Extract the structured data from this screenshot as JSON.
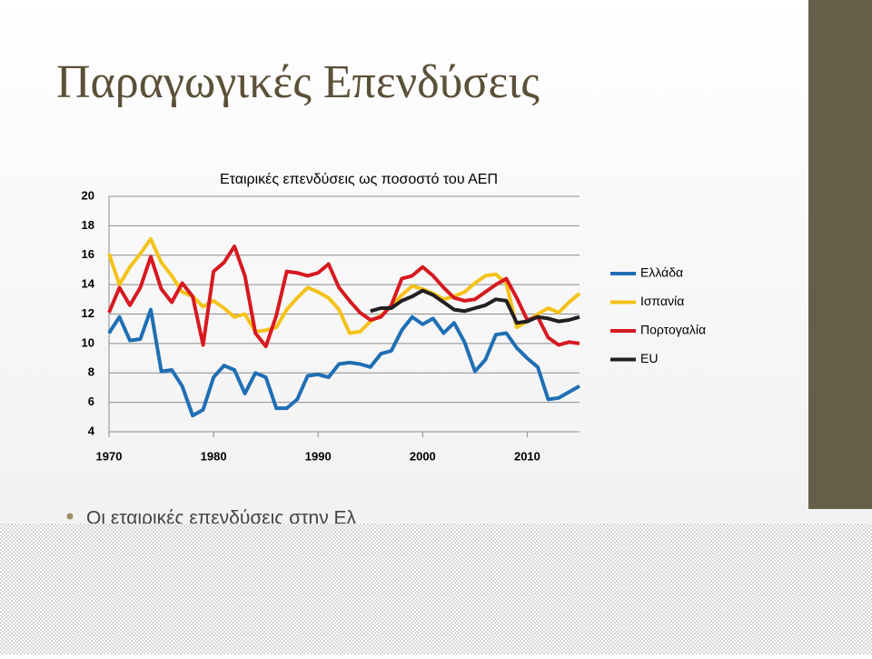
{
  "slide": {
    "title": "Παραγωγικές Επενδύσεις",
    "bullet": "Οι εταιρικές επενδύσεις στην Ελ"
  },
  "chart_data": {
    "type": "line",
    "title": "Εταιρικές επενδύσεις ως ποσοστό του ΑΕΠ",
    "x": [
      1970,
      1971,
      1972,
      1973,
      1974,
      1975,
      1976,
      1977,
      1978,
      1979,
      1980,
      1981,
      1982,
      1983,
      1984,
      1985,
      1986,
      1987,
      1988,
      1989,
      1990,
      1991,
      1992,
      1993,
      1994,
      1995,
      1996,
      1997,
      1998,
      1999,
      2000,
      2001,
      2002,
      2003,
      2004,
      2005,
      2006,
      2007,
      2008,
      2009,
      2010,
      2011,
      2012,
      2013,
      2014,
      2015
    ],
    "xlim": [
      1970,
      2015
    ],
    "xticks": [
      1970,
      1980,
      1990,
      2000,
      2010
    ],
    "ylim": [
      4,
      20
    ],
    "yticks": [
      4,
      6,
      8,
      10,
      12,
      14,
      16,
      18,
      20
    ],
    "grid": true,
    "legend": "right",
    "series": [
      {
        "name": "Ελλάδα",
        "color": "#1f6fb4",
        "values": [
          10.7,
          11.8,
          10.2,
          10.3,
          12.3,
          8.1,
          8.2,
          7.1,
          5.1,
          5.5,
          7.7,
          8.5,
          8.2,
          6.6,
          8.0,
          7.7,
          5.6,
          5.6,
          6.2,
          7.8,
          7.9,
          7.7,
          8.6,
          8.7,
          8.6,
          8.4,
          9.3,
          9.5,
          10.9,
          11.8,
          11.3,
          11.7,
          10.7,
          11.4,
          10.1,
          8.1,
          8.9,
          10.6,
          10.7,
          9.7,
          9.0,
          8.4,
          6.2,
          6.3,
          6.7,
          7.1
        ]
      },
      {
        "name": "Ισπανία",
        "color": "#f5c218",
        "values": [
          16.1,
          14.0,
          15.2,
          16.1,
          17.1,
          15.5,
          14.6,
          13.5,
          13.2,
          12.5,
          12.9,
          12.4,
          11.8,
          12.0,
          10.8,
          10.9,
          11.1,
          12.3,
          13.1,
          13.8,
          13.5,
          13.1,
          12.3,
          10.7,
          10.8,
          11.5,
          11.9,
          12.5,
          13.3,
          13.9,
          13.7,
          13.4,
          13.0,
          13.2,
          13.5,
          14.1,
          14.6,
          14.7,
          14.1,
          11.1,
          11.5,
          12.0,
          12.4,
          12.1,
          12.8,
          13.4
        ]
      },
      {
        "name": "Πορτογαλία",
        "color": "#d71920",
        "values": [
          12.1,
          13.8,
          12.6,
          13.8,
          15.9,
          13.7,
          12.8,
          14.1,
          13.2,
          9.9,
          14.9,
          15.5,
          16.6,
          14.6,
          10.7,
          9.8,
          11.9,
          14.9,
          14.8,
          14.6,
          14.8,
          15.4,
          13.8,
          12.9,
          12.1,
          11.6,
          11.8,
          12.6,
          14.4,
          14.6,
          15.2,
          14.6,
          13.8,
          13.1,
          12.9,
          13.0,
          13.5,
          14.0,
          14.4,
          13.1,
          11.6,
          11.8,
          10.4,
          9.9,
          10.1,
          10.0
        ]
      },
      {
        "name": "EU",
        "color": "#231f20",
        "values": [
          null,
          null,
          null,
          null,
          null,
          null,
          null,
          null,
          null,
          null,
          null,
          null,
          null,
          null,
          null,
          null,
          null,
          null,
          null,
          null,
          null,
          null,
          null,
          null,
          null,
          12.2,
          12.4,
          12.4,
          12.9,
          13.2,
          13.6,
          13.3,
          12.8,
          12.3,
          12.2,
          12.4,
          12.6,
          13.0,
          12.9,
          11.4,
          11.5,
          11.8,
          11.7,
          11.5,
          11.6,
          11.8
        ]
      }
    ]
  }
}
